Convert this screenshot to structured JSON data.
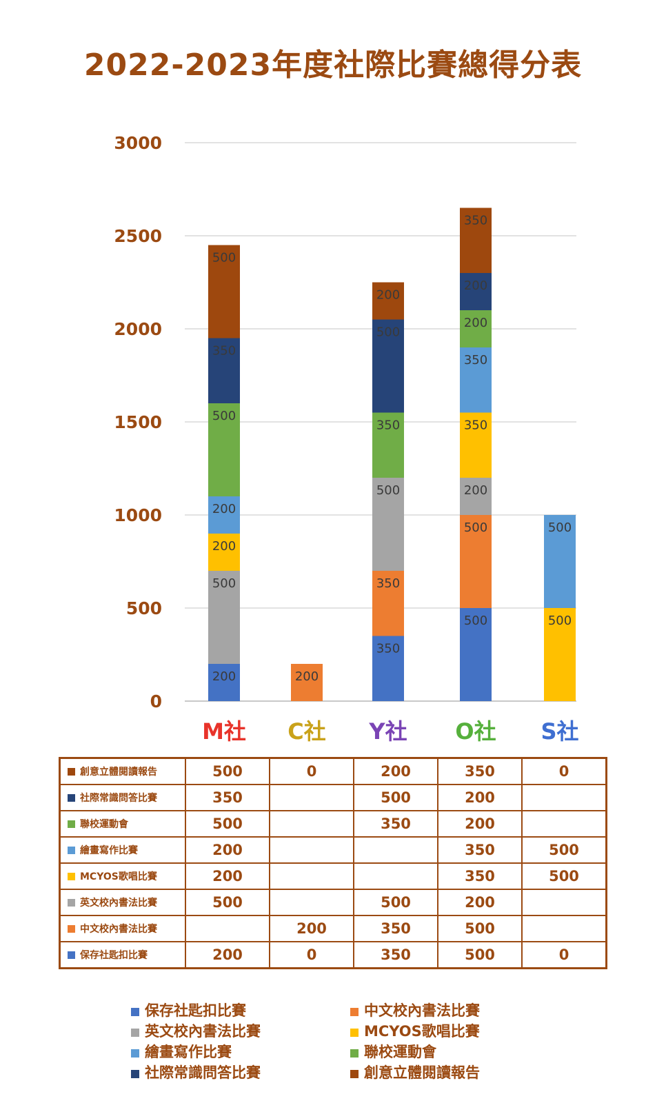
{
  "title": "2022-2023年度社際比賽總得分表",
  "chart_data": {
    "type": "bar",
    "stacked": true,
    "ylim": [
      0,
      3000
    ],
    "yticks": [
      "0",
      "500",
      "1000",
      "1500",
      "2000",
      "2500",
      "3000"
    ],
    "grid": true,
    "legend_position": "bottom",
    "categories": [
      "M社",
      "C社",
      "Y社",
      "O社",
      "S社"
    ],
    "category_colors": [
      "#e8332a",
      "#c9a21a",
      "#7a44b5",
      "#56b03c",
      "#3f6fd1"
    ],
    "series": [
      {
        "name": "保存社匙扣比賽",
        "color": "#4472c4",
        "values": [
          200,
          0,
          350,
          500,
          0
        ]
      },
      {
        "name": "中文校內書法比賽",
        "color": "#ed7d31",
        "values": [
          0,
          200,
          350,
          500,
          0
        ]
      },
      {
        "name": "英文校內書法比賽",
        "color": "#a5a5a5",
        "values": [
          500,
          0,
          500,
          200,
          0
        ]
      },
      {
        "name": "MCYOS歌唱比賽",
        "color": "#ffc000",
        "values": [
          200,
          0,
          0,
          350,
          500
        ]
      },
      {
        "name": "繪畫寫作比賽",
        "color": "#5b9bd5",
        "values": [
          200,
          0,
          0,
          350,
          500
        ]
      },
      {
        "name": "聯校運動會",
        "color": "#70ad47",
        "values": [
          500,
          0,
          350,
          200,
          0
        ]
      },
      {
        "name": "社際常識問答比賽",
        "color": "#264478",
        "values": [
          350,
          0,
          500,
          200,
          0
        ]
      },
      {
        "name": "創意立體閱讀報告",
        "color": "#9e480e",
        "values": [
          500,
          0,
          200,
          350,
          0
        ]
      }
    ]
  },
  "table": {
    "rows": [
      {
        "label": "創意立體閱讀報告",
        "color": "#9e480e",
        "cells": [
          "500",
          "0",
          "200",
          "350",
          "0"
        ]
      },
      {
        "label": "社際常識問答比賽",
        "color": "#264478",
        "cells": [
          "350",
          "",
          "500",
          "200",
          ""
        ]
      },
      {
        "label": "聯校運動會",
        "color": "#70ad47",
        "cells": [
          "500",
          "",
          "350",
          "200",
          ""
        ]
      },
      {
        "label": "繪畫寫作比賽",
        "color": "#5b9bd5",
        "cells": [
          "200",
          "",
          "",
          "350",
          "500"
        ]
      },
      {
        "label": "MCYOS歌唱比賽",
        "color": "#ffc000",
        "cells": [
          "200",
          "",
          "",
          "350",
          "500"
        ]
      },
      {
        "label": "英文校內書法比賽",
        "color": "#a5a5a5",
        "cells": [
          "500",
          "",
          "500",
          "200",
          ""
        ]
      },
      {
        "label": "中文校內書法比賽",
        "color": "#ed7d31",
        "cells": [
          "",
          "200",
          "350",
          "500",
          ""
        ]
      },
      {
        "label": "保存社匙扣比賽",
        "color": "#4472c4",
        "cells": [
          "200",
          "0",
          "350",
          "500",
          "0"
        ]
      }
    ]
  },
  "legend": [
    {
      "label": "保存社匙扣比賽",
      "color": "#4472c4"
    },
    {
      "label": "中文校內書法比賽",
      "color": "#ed7d31"
    },
    {
      "label": "英文校內書法比賽",
      "color": "#a5a5a5"
    },
    {
      "label": "MCYOS歌唱比賽",
      "color": "#ffc000"
    },
    {
      "label": "繪畫寫作比賽",
      "color": "#5b9bd5"
    },
    {
      "label": "聯校運動會",
      "color": "#70ad47"
    },
    {
      "label": "社際常識問答比賽",
      "color": "#264478"
    },
    {
      "label": "創意立體閱讀報告",
      "color": "#9e480e"
    }
  ]
}
